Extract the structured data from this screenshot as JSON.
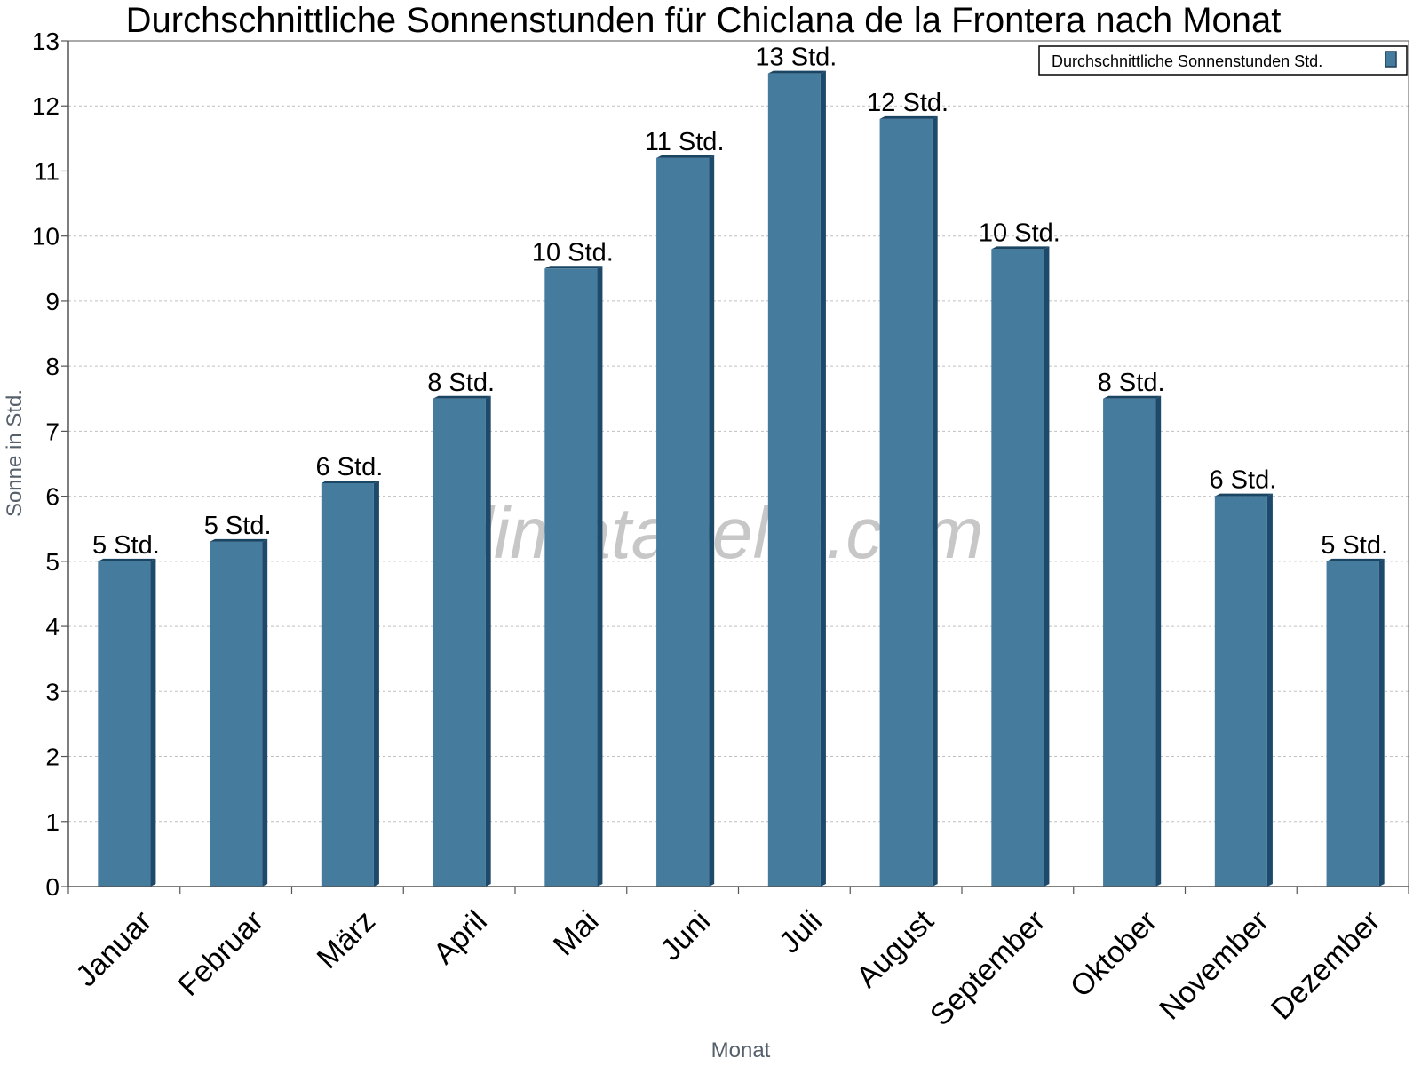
{
  "chart_data": {
    "type": "bar",
    "title": "Durchschnittliche Sonnenstunden für Chiclana de la Frontera nach Monat",
    "xlabel": "Monat",
    "ylabel": "Sonne in Std.",
    "ylim": [
      0,
      13
    ],
    "yticks": [
      0,
      1,
      2,
      3,
      4,
      5,
      6,
      7,
      8,
      9,
      10,
      11,
      12,
      13
    ],
    "grid": true,
    "legend_position": "top-right",
    "categories": [
      "Januar",
      "Februar",
      "März",
      "April",
      "Mai",
      "Juni",
      "Juli",
      "August",
      "September",
      "Oktober",
      "November",
      "Dezember"
    ],
    "series": [
      {
        "name": "Durchschnittliche Sonnenstunden Std.",
        "color": "#457b9d",
        "values": [
          5.0,
          5.3,
          6.2,
          7.5,
          9.5,
          11.2,
          12.5,
          11.8,
          9.8,
          7.5,
          6.0,
          5.0
        ],
        "labels": [
          "5 Std.",
          "5 Std.",
          "6 Std.",
          "8 Std.",
          "10 Std.",
          "11 Std.",
          "13 Std.",
          "12 Std.",
          "10 Std.",
          "8 Std.",
          "6 Std.",
          "5 Std."
        ]
      }
    ],
    "watermark": "klimatabelle.com"
  }
}
